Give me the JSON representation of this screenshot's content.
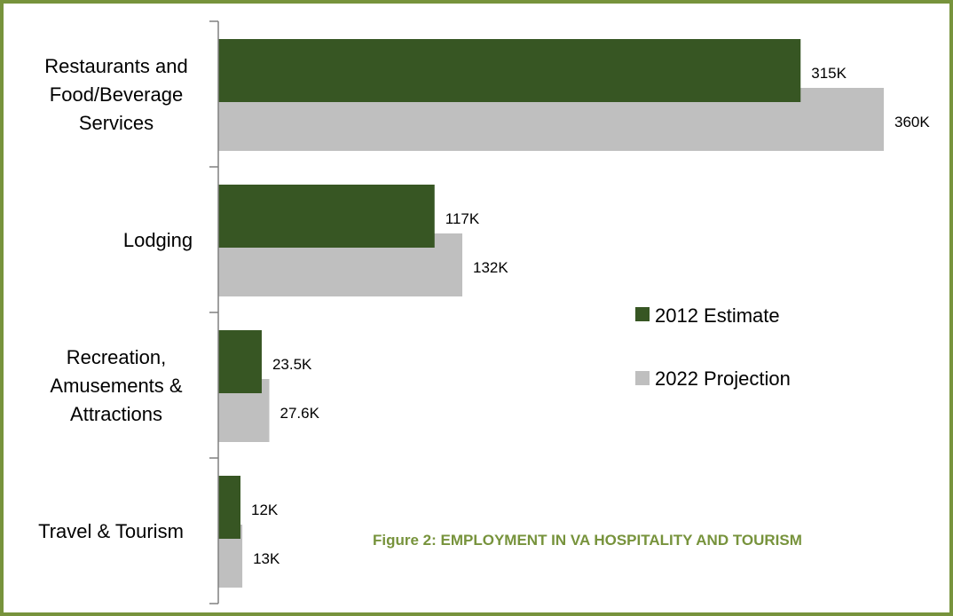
{
  "chart_data": {
    "type": "bar",
    "orientation": "horizontal",
    "title": "Figure 2:  EMPLOYMENT IN VA HOSPITALITY AND TOURISM",
    "categories": [
      [
        "Restaurants and",
        "Food/Beverage",
        "Services"
      ],
      [
        "Lodging"
      ],
      [
        "Recreation,",
        "Amusements &",
        "Attractions"
      ],
      [
        "Travel & Tourism"
      ]
    ],
    "series": [
      {
        "name": "2012 Estimate",
        "color": "#375623",
        "values": [
          315,
          117,
          23.5,
          12
        ],
        "labels": [
          "315K",
          "117K",
          "23.5K",
          "12K"
        ]
      },
      {
        "name": "2022 Projection",
        "color": "#bfbfbf",
        "values": [
          360,
          132,
          27.6,
          13
        ],
        "labels": [
          "360K",
          "132K",
          "27.6K",
          "13K"
        ]
      }
    ],
    "xlim": [
      0,
      360
    ],
    "legend_position": "right-center",
    "grid": false
  },
  "frame_color": "#77933c",
  "axis_color": "#808080"
}
